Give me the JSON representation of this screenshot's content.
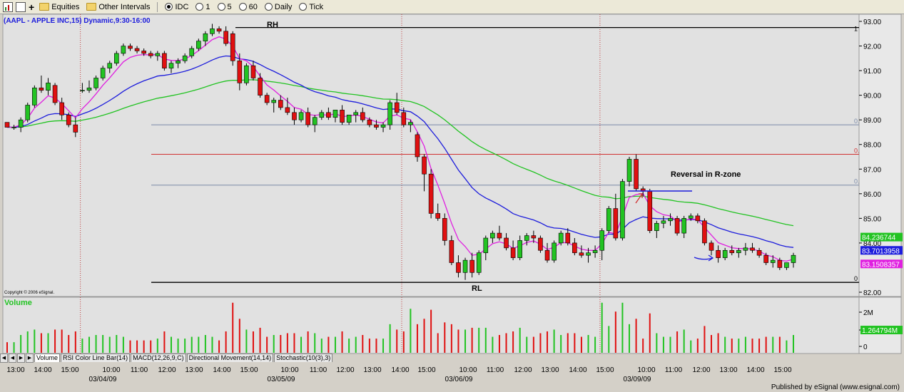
{
  "toolbar": {
    "equities": "Equities",
    "other_intervals": "Other Intervals",
    "intervals": [
      "IDC",
      "1",
      "5",
      "60",
      "Daily",
      "Tick"
    ]
  },
  "chart_title": "(AAPL - APPLE INC,15) Dynamic,9:30-16:00",
  "copyright": "Copyright © 2006 eSignal.",
  "footer": "Published by eSignal (www.esignal.com)",
  "tabs": [
    "Volume",
    "RSI Color Line Bar(14)",
    "MACD(12,26,9,C)",
    "Directional Movement(14,14)",
    "Stochastic(10(3),3)"
  ],
  "annotations": {
    "rh": "RH",
    "rl": "RL",
    "reversal": "Reversal in R-zone"
  },
  "fib_labels": [
    "1",
    "0.",
    "0.",
    "0.",
    "0"
  ],
  "price_tags": [
    {
      "text": "84.236744",
      "color": "#22c322"
    },
    {
      "text": "83.7013958",
      "color": "#1c1cdc"
    },
    {
      "text": "83.1508357",
      "color": "#e020e0"
    }
  ],
  "volume": {
    "label": "Volume",
    "tag": "1.264794M",
    "ticks": [
      "2M",
      "1M",
      "0"
    ]
  },
  "date_labels": [
    "03/04/09",
    "03/05/09",
    "03/06/09",
    "03/09/09"
  ],
  "colors": {
    "up": "#22c322",
    "down": "#e01010",
    "ema_fast": "#e020e0",
    "ema_mid": "#1c1cdc",
    "ema_slow": "#22c322",
    "background": "#e1e1e1"
  },
  "chart_data": {
    "type": "candlestick",
    "symbol": "AAPL",
    "interval": "15 min",
    "ylim": [
      82,
      93
    ],
    "y_ticks": [
      "93.00",
      "92.00",
      "91.00",
      "90.00",
      "89.00",
      "88.00",
      "87.00",
      "86.00",
      "85.00",
      "84.00",
      "82.00"
    ],
    "x_ticks": [
      "13:00",
      "14:00",
      "15:00",
      "10:00",
      "11:00",
      "12:00",
      "13:00",
      "14:00",
      "15:00",
      "10:00",
      "11:00",
      "12:00",
      "13:00",
      "14:00",
      "15:00",
      "10:00",
      "11:00",
      "12:00",
      "13:00",
      "14:00",
      "15:00",
      "10:00",
      "11:00",
      "12:00",
      "13:00",
      "14:00",
      "15:00"
    ],
    "levels": [
      {
        "name": "RH",
        "value": 92.75
      },
      {
        "name": "fib",
        "value": 88.8
      },
      {
        "name": "fib-red",
        "value": 87.6
      },
      {
        "name": "fib",
        "value": 86.35
      },
      {
        "name": "RL",
        "value": 82.4
      }
    ],
    "candles": [
      [
        88.9,
        88.9,
        88.7,
        88.7
      ],
      [
        88.7,
        88.8,
        88.6,
        88.7
      ],
      [
        88.7,
        89.1,
        88.5,
        89.0
      ],
      [
        89.0,
        89.7,
        88.9,
        89.6
      ],
      [
        89.6,
        90.4,
        89.5,
        90.3
      ],
      [
        90.3,
        90.8,
        90.1,
        90.2
      ],
      [
        90.2,
        90.7,
        90.0,
        90.5
      ],
      [
        90.4,
        90.5,
        89.6,
        89.7
      ],
      [
        89.7,
        89.9,
        89.0,
        89.2
      ],
      [
        89.2,
        89.3,
        88.7,
        88.8
      ],
      [
        88.8,
        89.1,
        88.3,
        88.5
      ],
      [
        90.2,
        90.5,
        90.1,
        90.2
      ],
      [
        90.2,
        90.6,
        90.1,
        90.3
      ],
      [
        90.3,
        90.8,
        90.2,
        90.7
      ],
      [
        90.7,
        91.2,
        90.6,
        91.1
      ],
      [
        91.1,
        91.4,
        90.9,
        91.3
      ],
      [
        91.3,
        91.8,
        91.2,
        91.7
      ],
      [
        91.7,
        92.1,
        91.6,
        92.0
      ],
      [
        92.0,
        92.1,
        91.8,
        91.9
      ],
      [
        91.9,
        92.0,
        91.7,
        91.8
      ],
      [
        91.8,
        91.9,
        91.6,
        91.7
      ],
      [
        91.7,
        91.8,
        91.5,
        91.6
      ],
      [
        91.6,
        91.8,
        91.4,
        91.7
      ],
      [
        91.7,
        91.8,
        91.0,
        91.1
      ],
      [
        91.1,
        91.4,
        90.9,
        91.3
      ],
      [
        91.3,
        91.5,
        91.1,
        91.4
      ],
      [
        91.4,
        91.7,
        91.3,
        91.6
      ],
      [
        91.6,
        92.0,
        91.5,
        91.9
      ],
      [
        91.9,
        92.3,
        91.8,
        92.2
      ],
      [
        92.2,
        92.6,
        92.0,
        92.5
      ],
      [
        92.5,
        92.9,
        92.4,
        92.7
      ],
      [
        92.7,
        92.8,
        92.5,
        92.6
      ],
      [
        92.6,
        92.8,
        92.0,
        92.1
      ],
      [
        92.5,
        92.6,
        91.2,
        91.4
      ],
      [
        91.4,
        91.7,
        90.2,
        90.5
      ],
      [
        90.5,
        91.3,
        90.4,
        91.2
      ],
      [
        91.2,
        91.4,
        90.6,
        90.7
      ],
      [
        90.7,
        90.9,
        89.9,
        90.0
      ],
      [
        90.0,
        90.1,
        89.6,
        89.7
      ],
      [
        89.7,
        89.9,
        89.3,
        89.8
      ],
      [
        89.8,
        90.0,
        89.4,
        89.5
      ],
      [
        89.5,
        89.9,
        89.2,
        89.3
      ],
      [
        89.3,
        89.5,
        88.8,
        89.0
      ],
      [
        89.0,
        89.4,
        88.9,
        89.3
      ],
      [
        89.3,
        89.5,
        88.7,
        88.8
      ],
      [
        88.8,
        89.2,
        88.5,
        89.1
      ],
      [
        89.1,
        89.4,
        89.0,
        89.3
      ],
      [
        89.3,
        89.5,
        89.0,
        89.1
      ],
      [
        89.1,
        89.4,
        88.9,
        89.4
      ],
      [
        89.4,
        89.6,
        88.8,
        88.9
      ],
      [
        88.9,
        89.2,
        88.8,
        89.2
      ],
      [
        89.2,
        89.4,
        88.9,
        89.3
      ],
      [
        89.3,
        89.5,
        88.9,
        89.0
      ],
      [
        89.0,
        89.1,
        88.7,
        88.8
      ],
      [
        88.8,
        89.0,
        88.6,
        88.7
      ],
      [
        88.7,
        88.9,
        88.5,
        88.8
      ],
      [
        88.8,
        89.8,
        88.6,
        89.7
      ],
      [
        89.7,
        90.1,
        89.2,
        89.3
      ],
      [
        89.3,
        89.5,
        88.7,
        88.8
      ],
      [
        88.8,
        89.0,
        88.5,
        88.9
      ],
      [
        88.4,
        88.5,
        87.3,
        87.5
      ],
      [
        87.5,
        87.6,
        86.1,
        86.8
      ],
      [
        86.8,
        87.0,
        85.0,
        85.2
      ],
      [
        85.2,
        85.6,
        84.9,
        85.0
      ],
      [
        85.0,
        85.2,
        83.9,
        84.1
      ],
      [
        84.1,
        84.3,
        83.1,
        83.2
      ],
      [
        83.2,
        83.5,
        82.6,
        82.8
      ],
      [
        82.8,
        83.4,
        82.5,
        83.3
      ],
      [
        83.3,
        83.6,
        82.6,
        82.8
      ],
      [
        82.8,
        83.7,
        82.7,
        83.6
      ],
      [
        83.6,
        84.3,
        83.3,
        84.2
      ],
      [
        84.2,
        84.5,
        84.0,
        84.4
      ],
      [
        84.4,
        84.7,
        84.1,
        84.2
      ],
      [
        84.2,
        84.4,
        83.7,
        83.8
      ],
      [
        83.8,
        84.1,
        83.3,
        83.4
      ],
      [
        83.4,
        84.3,
        83.3,
        84.1
      ],
      [
        84.1,
        84.4,
        83.9,
        84.3
      ],
      [
        84.3,
        84.5,
        84.0,
        84.2
      ],
      [
        84.2,
        84.3,
        83.6,
        83.7
      ],
      [
        83.7,
        84.0,
        83.2,
        83.3
      ],
      [
        83.3,
        84.1,
        83.2,
        84.0
      ],
      [
        84.0,
        84.5,
        83.9,
        84.4
      ],
      [
        84.4,
        84.6,
        83.9,
        84.0
      ],
      [
        84.0,
        84.2,
        83.5,
        83.6
      ],
      [
        83.6,
        83.9,
        83.4,
        83.5
      ],
      [
        83.5,
        83.8,
        83.2,
        83.6
      ],
      [
        83.6,
        83.9,
        83.4,
        83.7
      ],
      [
        83.7,
        84.6,
        83.3,
        84.5
      ],
      [
        84.5,
        85.5,
        84.4,
        85.4
      ],
      [
        85.4,
        86.0,
        84.1,
        84.2
      ],
      [
        84.2,
        86.6,
        84.1,
        86.5
      ],
      [
        86.5,
        87.5,
        86.3,
        87.4
      ],
      [
        87.4,
        87.6,
        86.1,
        86.2
      ],
      [
        86.2,
        86.3,
        85.9,
        86.1
      ],
      [
        86.1,
        86.2,
        84.4,
        84.5
      ],
      [
        84.5,
        84.9,
        84.2,
        84.8
      ],
      [
        84.8,
        85.1,
        84.6,
        84.9
      ],
      [
        84.9,
        85.2,
        84.7,
        85.0
      ],
      [
        85.0,
        85.1,
        84.3,
        84.4
      ],
      [
        84.4,
        85.1,
        84.2,
        85.0
      ],
      [
        85.0,
        85.2,
        84.9,
        85.1
      ],
      [
        85.1,
        85.2,
        84.8,
        84.9
      ],
      [
        84.9,
        85.0,
        83.9,
        84.0
      ],
      [
        84.0,
        84.1,
        83.5,
        83.7
      ],
      [
        83.7,
        83.9,
        83.2,
        83.4
      ],
      [
        83.4,
        83.8,
        83.3,
        83.7
      ],
      [
        83.7,
        83.9,
        83.5,
        83.6
      ],
      [
        83.6,
        83.8,
        83.4,
        83.7
      ],
      [
        83.7,
        84.0,
        83.5,
        83.8
      ],
      [
        83.8,
        84.0,
        83.6,
        83.7
      ],
      [
        83.7,
        83.8,
        83.4,
        83.5
      ],
      [
        83.5,
        83.6,
        83.1,
        83.2
      ],
      [
        83.2,
        83.5,
        83.0,
        83.3
      ],
      [
        83.3,
        83.4,
        82.9,
        83.0
      ],
      [
        83.0,
        83.2,
        82.9,
        83.2
      ],
      [
        83.2,
        83.6,
        83.0,
        83.5
      ]
    ]
  }
}
